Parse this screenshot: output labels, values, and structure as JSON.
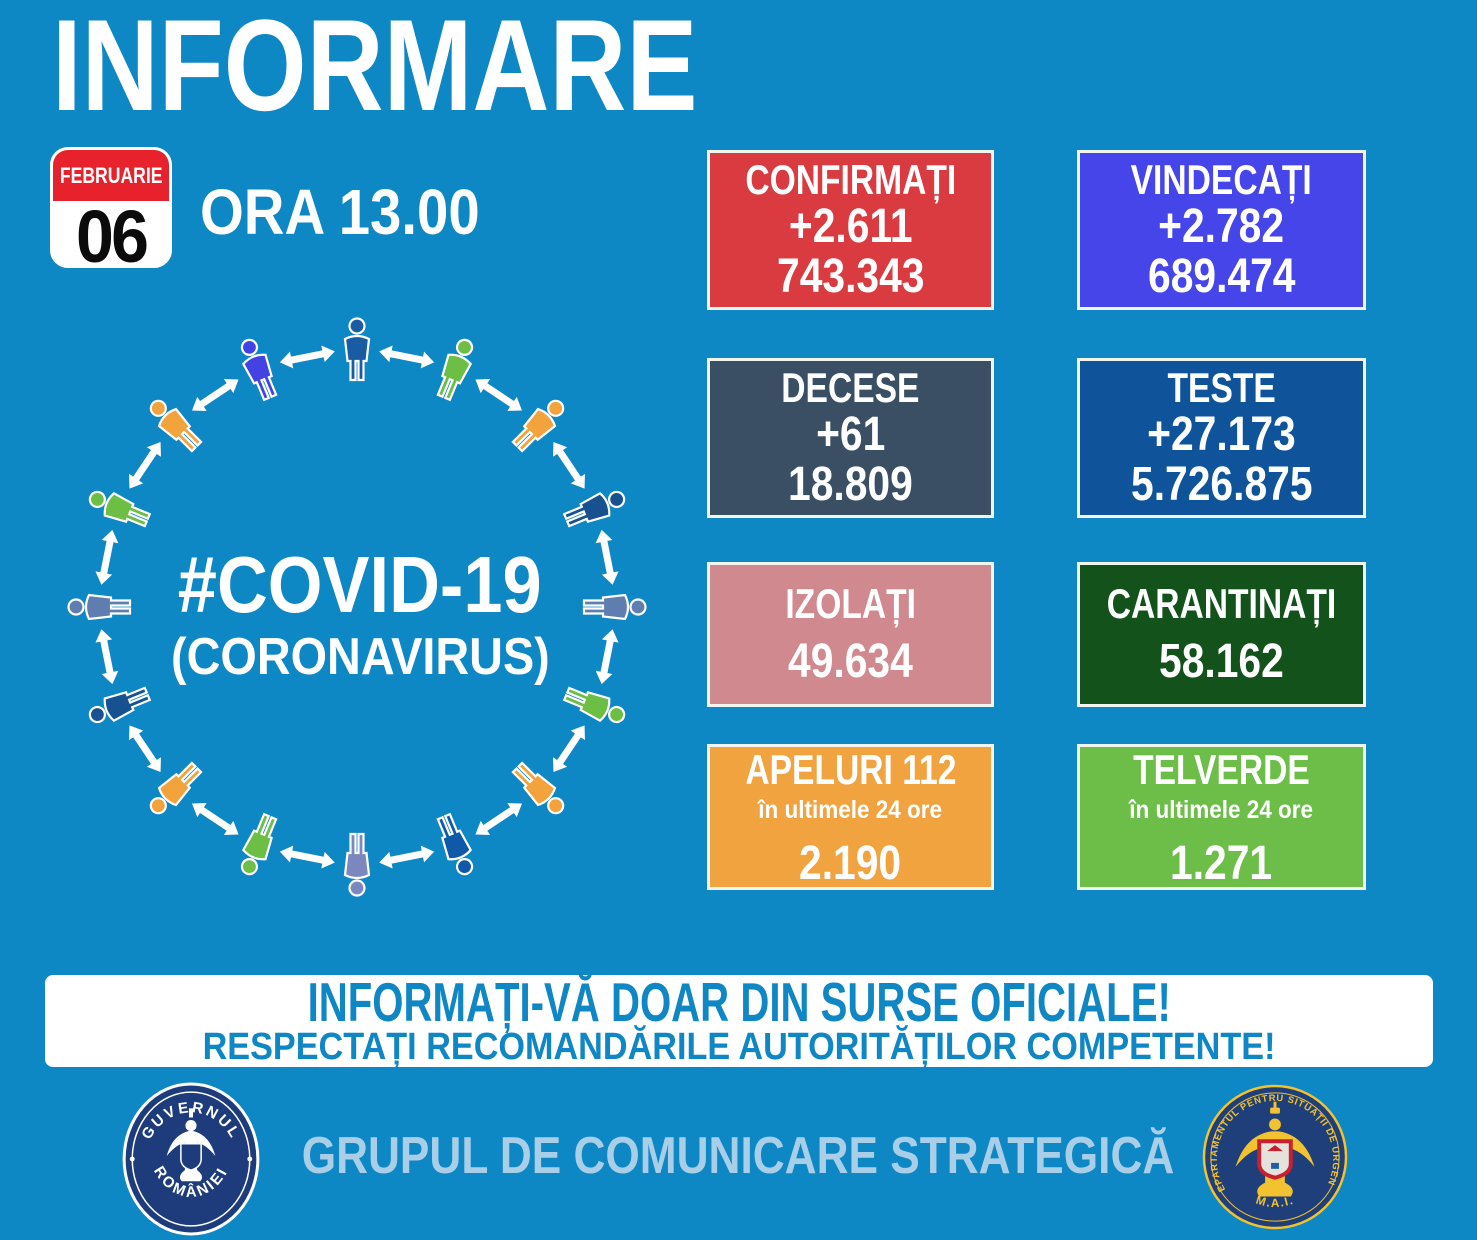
{
  "colors": {
    "background": "#0E87C5",
    "box_border": "#F2F4EF",
    "banner_bg": "#FFFFFF",
    "banner_text": "#0F87C5",
    "footer_text": "#A9CFE8",
    "calendar_red": "#E8222D",
    "white": "#FFFFFF"
  },
  "header": {
    "title": "INFORMARE",
    "calendar_month": "FEBRUARIE",
    "calendar_day": "06",
    "time_label": "ORA 13.00"
  },
  "circle": {
    "hashtag": "#COVID-19",
    "subtitle": "(CORONAVIRUS)",
    "arrow_color": "#FFFFFF",
    "person_colors": [
      "#1A5CA3",
      "#6CBE45",
      "#F2A33C",
      "#17518F",
      "#5F7DAE",
      "#6CBE45",
      "#F2A33C",
      "#1058A8",
      "#7B87BE",
      "#6CBE45",
      "#F2A33C",
      "#17518F",
      "#5F7DAE",
      "#6CBE45",
      "#F2A33C",
      "#4343E3"
    ]
  },
  "stats": [
    {
      "label": "CONFIRMAȚI",
      "delta": "+2.611",
      "total": "743.343",
      "bg": "#D93B40"
    },
    {
      "label": "VINDECAȚI",
      "delta": "+2.782",
      "total": "689.474",
      "bg": "#4545EA"
    },
    {
      "label": "DECESE",
      "delta": "+61",
      "total": "18.809",
      "bg": "#3A4F63"
    },
    {
      "label": "TESTE",
      "delta": "+27.173",
      "total": "5.726.875",
      "bg": "#0F549B"
    },
    {
      "label": "IZOLAȚI",
      "total": "49.634",
      "bg": "#D18990"
    },
    {
      "label": "CARANTINAȚI",
      "total": "58.162",
      "bg": "#14521C"
    },
    {
      "label": "APELURI 112",
      "sublabel": "în ultimele 24 ore",
      "total": "2.190",
      "bg": "#F0A33F"
    },
    {
      "label": "TELVERDE",
      "sublabel": "în ultimele 24 ore",
      "total": "1.271",
      "bg": "#6CBE49"
    }
  ],
  "banner": {
    "line1": "INFORMAȚI-VĂ DOAR DIN SURSE OFICIALE!",
    "line2": "RESPECTAȚI RECOMANDĂRILE AUTORITĂȚILOR COMPETENTE!"
  },
  "footer": {
    "center_text": "GRUPUL DE COMUNICARE STRATEGICĂ",
    "gov_seal_top": "GUVERNUL",
    "gov_seal_bottom": "ROMÂNIEI",
    "dsu_ring_text": "DEPARTAMENTUL PENTRU SITUAȚII DE URGENȚĂ",
    "dsu_bottom_text": "M.A.I."
  }
}
